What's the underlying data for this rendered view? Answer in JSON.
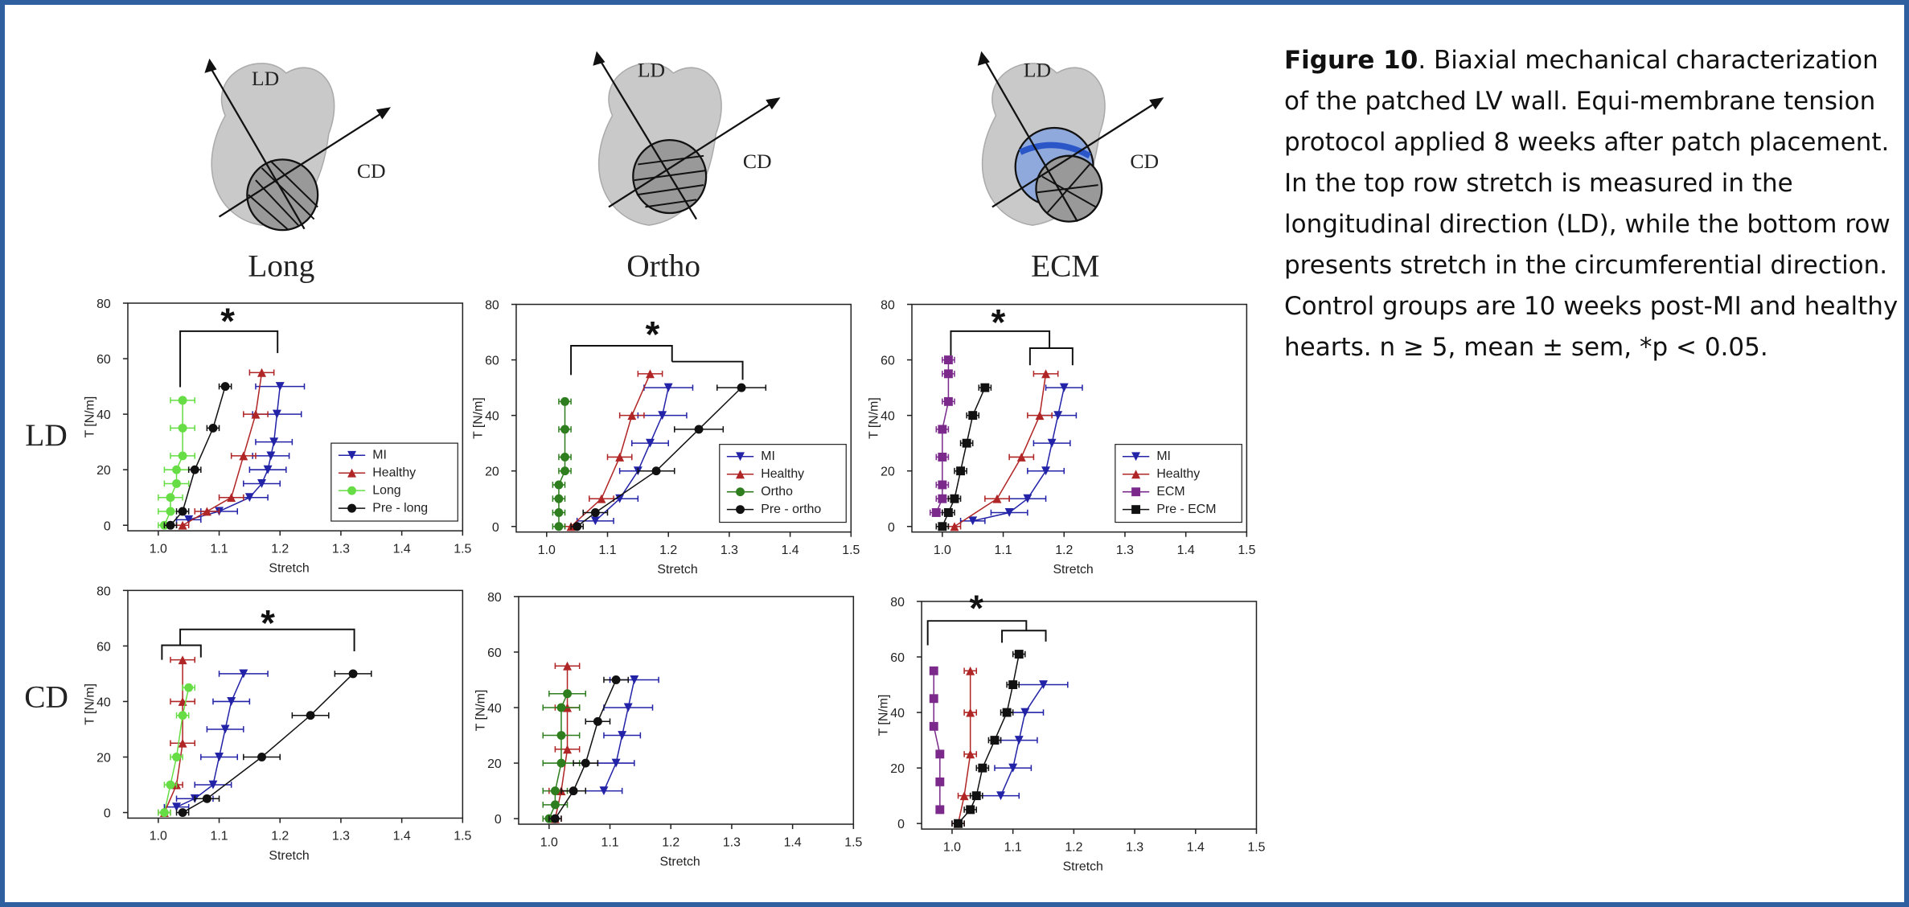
{
  "caption": {
    "label": "Figure 10",
    "text": ". Biaxial mechanical characterization of the patched LV wall. Equi-membrane tension protocol applied 8 weeks after patch placement. In the top row stretch is measured in the longitudinal direction (LD), while the bottom row presents stretch in the circumferential direction. Control groups are 10 weeks post-MI and healthy hearts. n ≥ 5, mean ± sem, *p < 0.05."
  },
  "figure": {
    "column_titles": [
      "Long",
      "Ortho",
      "ECM"
    ],
    "row_labels": [
      "LD",
      "CD"
    ],
    "diagram_labels": [
      [
        "LD",
        "CD"
      ],
      [
        "LD",
        "CD"
      ],
      [
        "LD",
        "CD"
      ]
    ]
  },
  "chart_data": [
    {
      "type": "line",
      "xlabel": "Stretch",
      "ylabel": "T [N/m]",
      "xlim": [
        0.95,
        1.5
      ],
      "ylim": [
        -2,
        80
      ],
      "xticks": [
        {
          "value": 1,
          "label": "1.0"
        },
        1.1,
        1.2,
        1.3,
        1.4,
        1.5
      ],
      "yticks": [
        0,
        20,
        40,
        60,
        80
      ],
      "legend": "lower right",
      "annotations": [
        "*"
      ],
      "series": [
        {
          "name": "MI",
          "color": "#2323a8",
          "marker": "triangle-down",
          "x": [
            1.05,
            1.1,
            1.15,
            1.17,
            1.18,
            1.185,
            1.19,
            1.195,
            1.2
          ],
          "values": [
            2,
            5,
            10,
            15,
            20,
            25,
            30,
            40,
            50
          ],
          "x_err": [
            0.02,
            0.03,
            0.03,
            0.03,
            0.03,
            0.03,
            0.03,
            0.04,
            0.04
          ]
        },
        {
          "name": "Healthy",
          "color": "#b02525",
          "marker": "triangle-up",
          "x": [
            1.04,
            1.08,
            1.12,
            1.14,
            1.16,
            1.17
          ],
          "values": [
            0,
            5,
            10,
            25,
            40,
            55
          ],
          "x_err": [
            0.01,
            0.02,
            0.02,
            0.02,
            0.02,
            0.02
          ]
        },
        {
          "name": "Long",
          "color": "#66dd44",
          "marker": "circle",
          "x": [
            1.01,
            1.02,
            1.02,
            1.03,
            1.03,
            1.04,
            1.04,
            1.04
          ],
          "values": [
            0,
            5,
            10,
            15,
            20,
            25,
            35,
            45
          ],
          "x_err": [
            0.01,
            0.02,
            0.02,
            0.02,
            0.02,
            0.02,
            0.02,
            0.02
          ]
        },
        {
          "name": "Pre - long",
          "color": "#111111",
          "marker": "circle",
          "x": [
            1.02,
            1.04,
            1.06,
            1.09,
            1.11
          ],
          "values": [
            0,
            5,
            20,
            35,
            50
          ],
          "x_err": [
            0.01,
            0.01,
            0.01,
            0.01,
            0.01
          ]
        }
      ]
    },
    {
      "type": "line",
      "xlabel": "Stretch",
      "ylabel": "T [N/m]",
      "xlim": [
        0.95,
        1.5
      ],
      "ylim": [
        -2,
        80
      ],
      "xticks": [
        {
          "value": 1,
          "label": "1.0"
        },
        1.1,
        1.2,
        1.3,
        1.4,
        1.5
      ],
      "yticks": [
        0,
        20,
        40,
        60,
        80
      ],
      "legend": "lower right",
      "annotations": [
        "*"
      ],
      "series": [
        {
          "name": "MI",
          "color": "#2323a8",
          "marker": "triangle-down",
          "x": [
            1.08,
            1.12,
            1.15,
            1.17,
            1.19,
            1.2
          ],
          "values": [
            2,
            10,
            20,
            30,
            40,
            50
          ],
          "x_err": [
            0.03,
            0.03,
            0.03,
            0.03,
            0.04,
            0.04
          ]
        },
        {
          "name": "Healthy",
          "color": "#b02525",
          "marker": "triangle-up",
          "x": [
            1.04,
            1.09,
            1.12,
            1.14,
            1.17
          ],
          "values": [
            0,
            10,
            25,
            40,
            55
          ],
          "x_err": [
            0.01,
            0.02,
            0.02,
            0.02,
            0.02
          ]
        },
        {
          "name": "Ortho",
          "color": "#2e7d1e",
          "marker": "circle",
          "x": [
            1.02,
            1.02,
            1.02,
            1.02,
            1.03,
            1.03,
            1.03,
            1.03
          ],
          "values": [
            0,
            5,
            10,
            15,
            20,
            25,
            35,
            45
          ],
          "x_err": [
            0.01,
            0.01,
            0.01,
            0.01,
            0.01,
            0.01,
            0.01,
            0.01
          ]
        },
        {
          "name": "Pre - ortho",
          "color": "#111111",
          "marker": "circle",
          "x": [
            1.05,
            1.08,
            1.18,
            1.25,
            1.32
          ],
          "values": [
            0,
            5,
            20,
            35,
            50
          ],
          "x_err": [
            0.01,
            0.02,
            0.03,
            0.04,
            0.04
          ]
        }
      ]
    },
    {
      "type": "line",
      "xlabel": "Stretch",
      "ylabel": "T [N/m]",
      "xlim": [
        0.95,
        1.5
      ],
      "ylim": [
        -2,
        80
      ],
      "xticks": [
        {
          "value": 1,
          "label": "1.0"
        },
        1.1,
        1.2,
        1.3,
        1.4,
        1.5
      ],
      "yticks": [
        0,
        20,
        40,
        60,
        80
      ],
      "legend": "lower right",
      "annotations": [
        "*"
      ],
      "series": [
        {
          "name": "MI",
          "color": "#2323a8",
          "marker": "triangle-down",
          "x": [
            1.05,
            1.11,
            1.14,
            1.17,
            1.18,
            1.19,
            1.2
          ],
          "values": [
            2,
            5,
            10,
            20,
            30,
            40,
            50
          ],
          "x_err": [
            0.02,
            0.03,
            0.03,
            0.03,
            0.03,
            0.03,
            0.03
          ]
        },
        {
          "name": "Healthy",
          "color": "#b02525",
          "marker": "triangle-up",
          "x": [
            1.02,
            1.09,
            1.13,
            1.16,
            1.17
          ],
          "values": [
            0,
            10,
            25,
            40,
            55
          ],
          "x_err": [
            0.01,
            0.02,
            0.02,
            0.02,
            0.02
          ]
        },
        {
          "name": "ECM",
          "color": "#7b2a8c",
          "marker": "square",
          "x": [
            0.99,
            1.0,
            1.0,
            1.0,
            1.0,
            1.01,
            1.01,
            1.01
          ],
          "values": [
            5,
            10,
            15,
            25,
            35,
            45,
            55,
            60
          ],
          "x_err": [
            0.01,
            0.01,
            0.01,
            0.01,
            0.01,
            0.01,
            0.01,
            0.01
          ]
        },
        {
          "name": "Pre - ECM",
          "color": "#111111",
          "marker": "square",
          "x": [
            1.0,
            1.01,
            1.02,
            1.03,
            1.04,
            1.05,
            1.07
          ],
          "values": [
            0,
            5,
            10,
            20,
            30,
            40,
            50
          ],
          "x_err": [
            0.01,
            0.01,
            0.01,
            0.01,
            0.01,
            0.01,
            0.01
          ]
        }
      ]
    },
    {
      "type": "line",
      "xlabel": "Stretch",
      "ylabel": "T [N/m]",
      "xlim": [
        0.95,
        1.5
      ],
      "ylim": [
        -2,
        80
      ],
      "xticks": [
        {
          "value": 1,
          "label": "1.0"
        },
        1.1,
        1.2,
        1.3,
        1.4,
        1.5
      ],
      "yticks": [
        0,
        20,
        40,
        60,
        80
      ],
      "annotations": [
        "*"
      ],
      "series": [
        {
          "color": "#2323a8",
          "marker": "triangle-down",
          "x": [
            1.03,
            1.06,
            1.09,
            1.1,
            1.11,
            1.12,
            1.14
          ],
          "values": [
            2,
            5,
            10,
            20,
            30,
            40,
            50
          ],
          "x_err": [
            0.02,
            0.03,
            0.03,
            0.03,
            0.03,
            0.03,
            0.04
          ]
        },
        {
          "color": "#b02525",
          "marker": "triangle-up",
          "x": [
            1.01,
            1.03,
            1.04,
            1.04,
            1.04
          ],
          "values": [
            0,
            10,
            25,
            40,
            55
          ],
          "x_err": [
            0.01,
            0.01,
            0.02,
            0.02,
            0.02
          ]
        },
        {
          "color": "#66dd44",
          "marker": "circle",
          "x": [
            1.01,
            1.02,
            1.03,
            1.04,
            1.05
          ],
          "values": [
            0,
            10,
            20,
            35,
            45
          ],
          "x_err": [
            0.01,
            0.01,
            0.01,
            0.01,
            0.01
          ]
        },
        {
          "color": "#111111",
          "marker": "circle",
          "x": [
            1.04,
            1.08,
            1.17,
            1.25,
            1.32
          ],
          "values": [
            0,
            5,
            20,
            35,
            50
          ],
          "x_err": [
            0.01,
            0.02,
            0.03,
            0.03,
            0.03
          ]
        }
      ]
    },
    {
      "type": "line",
      "xlabel": "Stretch",
      "ylabel": "T [N/m]",
      "xlim": [
        0.95,
        1.5
      ],
      "ylim": [
        -2,
        80
      ],
      "xticks": [
        {
          "value": 1,
          "label": "1.0"
        },
        1.1,
        1.2,
        1.3,
        1.4,
        1.5
      ],
      "yticks": [
        0,
        20,
        40,
        60,
        80
      ],
      "series": [
        {
          "color": "#2323a8",
          "marker": "triangle-down",
          "x": [
            1.09,
            1.11,
            1.12,
            1.13,
            1.14
          ],
          "values": [
            10,
            20,
            30,
            40,
            50
          ],
          "x_err": [
            0.03,
            0.03,
            0.03,
            0.04,
            0.04
          ]
        },
        {
          "color": "#b02525",
          "marker": "triangle-up",
          "x": [
            1.01,
            1.02,
            1.03,
            1.03,
            1.03
          ],
          "values": [
            0,
            10,
            25,
            40,
            55
          ],
          "x_err": [
            0.01,
            0.02,
            0.02,
            0.02,
            0.02
          ]
        },
        {
          "color": "#2e7d1e",
          "marker": "circle",
          "x": [
            1.0,
            1.01,
            1.01,
            1.02,
            1.02,
            1.02,
            1.03
          ],
          "values": [
            0,
            5,
            10,
            20,
            30,
            40,
            45
          ],
          "x_err": [
            0.01,
            0.02,
            0.02,
            0.03,
            0.03,
            0.03,
            0.03
          ]
        },
        {
          "color": "#111111",
          "marker": "circle",
          "x": [
            1.01,
            1.04,
            1.06,
            1.08,
            1.11
          ],
          "values": [
            0,
            10,
            20,
            35,
            50
          ],
          "x_err": [
            0.01,
            0.02,
            0.02,
            0.02,
            0.02
          ]
        }
      ]
    },
    {
      "type": "line",
      "xlabel": "Stretch",
      "ylabel": "T [N/m]",
      "xlim": [
        0.95,
        1.5
      ],
      "ylim": [
        -2,
        80
      ],
      "xticks": [
        {
          "value": 1,
          "label": "1.0"
        },
        1.1,
        1.2,
        1.3,
        1.4,
        1.5
      ],
      "yticks": [
        0,
        20,
        40,
        60,
        80
      ],
      "annotations": [
        "*"
      ],
      "series": [
        {
          "color": "#2323a8",
          "marker": "triangle-down",
          "x": [
            1.08,
            1.1,
            1.11,
            1.12,
            1.15
          ],
          "values": [
            10,
            20,
            30,
            40,
            50
          ],
          "x_err": [
            0.03,
            0.03,
            0.03,
            0.03,
            0.04
          ]
        },
        {
          "color": "#b02525",
          "marker": "triangle-up",
          "x": [
            1.01,
            1.02,
            1.03,
            1.03,
            1.03
          ],
          "values": [
            0,
            10,
            25,
            40,
            55
          ],
          "x_err": [
            0.01,
            0.01,
            0.01,
            0.01,
            0.01
          ]
        },
        {
          "color": "#7b2a8c",
          "marker": "square",
          "x": [
            0.97,
            0.97,
            0.97,
            0.98,
            0.98,
            0.98
          ],
          "values": [
            55,
            45,
            35,
            25,
            15,
            5
          ],
          "x_err": [
            0.005,
            0.005,
            0.005,
            0.005,
            0.005,
            0.005
          ]
        },
        {
          "color": "#111111",
          "marker": "square",
          "x": [
            1.01,
            1.03,
            1.04,
            1.05,
            1.07,
            1.09,
            1.1,
            1.11
          ],
          "values": [
            0,
            5,
            10,
            20,
            30,
            40,
            50,
            61
          ],
          "x_err": [
            0.01,
            0.01,
            0.01,
            0.01,
            0.01,
            0.01,
            0.01,
            0.01
          ]
        }
      ]
    }
  ]
}
